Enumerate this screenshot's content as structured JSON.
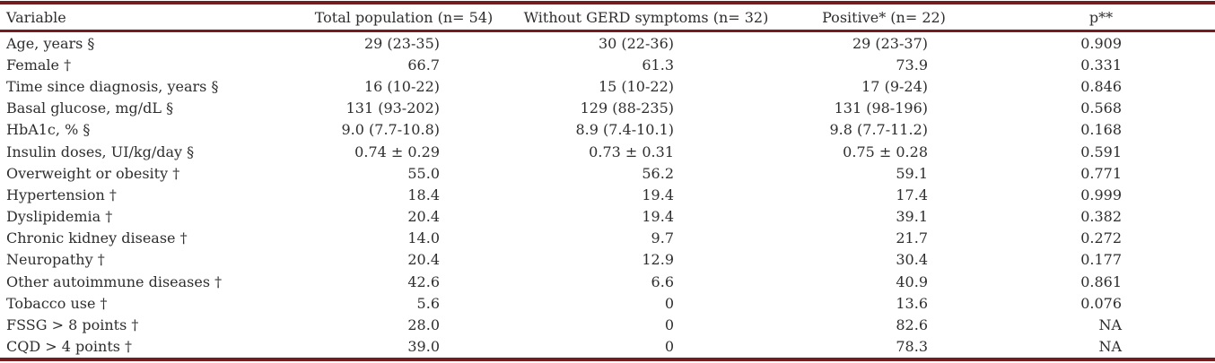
{
  "colors": {
    "rule": "#731d21",
    "text": "#2e2e2e"
  },
  "table": {
    "columns": [
      "Variable",
      "Total population (n= 54)",
      "Without GERD symptoms (n= 32)",
      "Positive* (n= 22)",
      "p**"
    ],
    "rows": [
      [
        "Age, years §",
        "29 (23-35)",
        "30 (22-36)",
        "29 (23-37)",
        "0.909"
      ],
      [
        "Female †",
        "66.7",
        "61.3",
        "73.9",
        "0.331"
      ],
      [
        "Time since diagnosis, years §",
        "16 (10-22)",
        "15 (10-22)",
        "17 (9-24)",
        "0.846"
      ],
      [
        "Basal glucose, mg/dL §",
        "131 (93-202)",
        "129 (88-235)",
        "131 (98-196)",
        "0.568"
      ],
      [
        "HbA1c, % §",
        "9.0 (7.7-10.8)",
        "8.9 (7.4-10.1)",
        "9.8 (7.7-11.2)",
        "0.168"
      ],
      [
        "Insulin doses, UI/kg/day §",
        "0.74 ± 0.29",
        "0.73 ± 0.31",
        "0.75 ± 0.28",
        "0.591"
      ],
      [
        "Overweight or obesity †",
        "55.0",
        "56.2",
        "59.1",
        "0.771"
      ],
      [
        "Hypertension †",
        "18.4",
        "19.4",
        "17.4",
        "0.999"
      ],
      [
        "Dyslipidemia †",
        "20.4",
        "19.4",
        "39.1",
        "0.382"
      ],
      [
        "Chronic kidney disease †",
        "14.0",
        "9.7",
        "21.7",
        "0.272"
      ],
      [
        "Neuropathy †",
        "20.4",
        "12.9",
        "30.4",
        "0.177"
      ],
      [
        "Other autoimmune diseases †",
        "42.6",
        "6.6",
        "40.9",
        "0.861"
      ],
      [
        "Tobacco use †",
        "5.6",
        "0",
        "13.6",
        "0.076"
      ],
      [
        "FSSG > 8 points †",
        "28.0",
        "0",
        "82.6",
        "NA"
      ],
      [
        "CQD > 4 points †",
        "39.0",
        "0",
        "78.3",
        "NA"
      ]
    ]
  }
}
